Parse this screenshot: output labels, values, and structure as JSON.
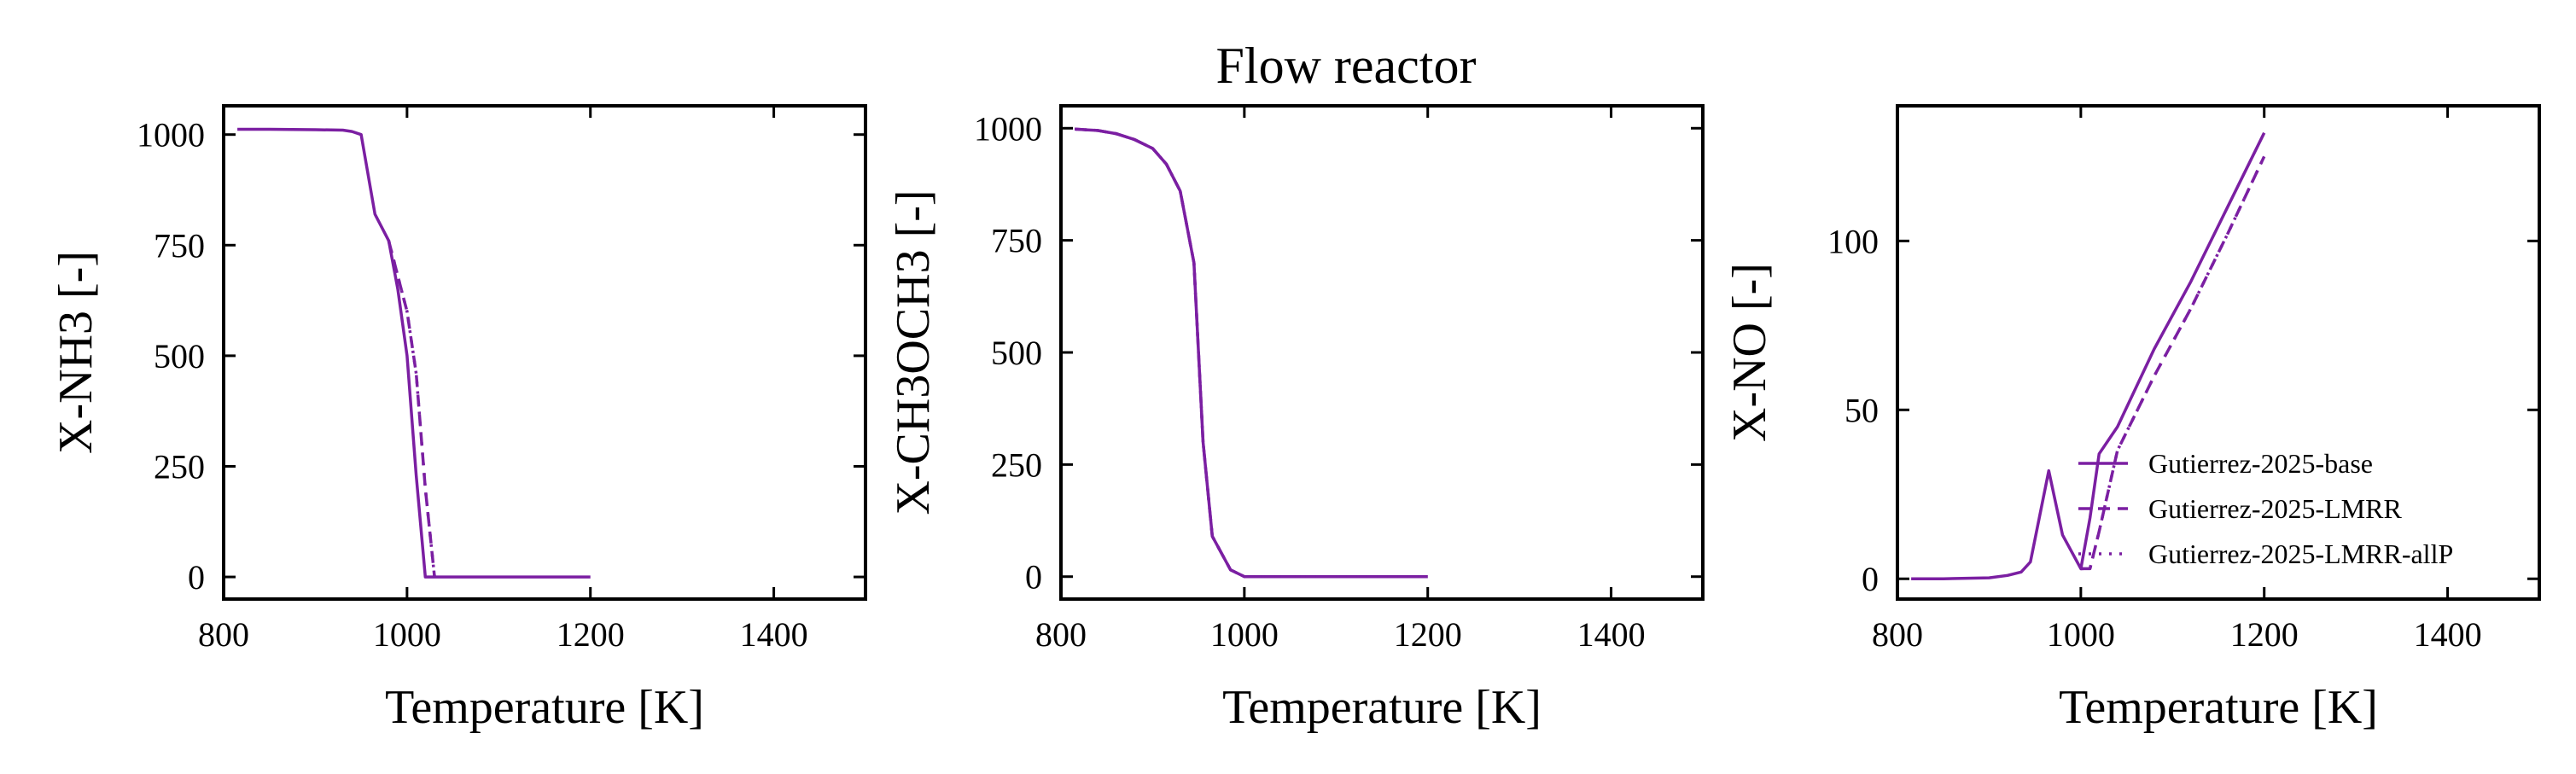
{
  "figure": {
    "title": "Flow reactor",
    "line_color": "#7B1FA2"
  },
  "legend": {
    "placement": "lower-right",
    "entries": [
      {
        "label": "Gutierrez-2025-base",
        "style": "solid"
      },
      {
        "label": "Gutierrez-2025-LMRR",
        "style": "dashed"
      },
      {
        "label": "Gutierrez-2025-LMRR-allP",
        "style": "dotted"
      }
    ]
  },
  "chart_data": [
    {
      "type": "line",
      "xlabel": "Temperature [K]",
      "ylabel": "X-NH3 [-]",
      "xlim": [
        800,
        1500
      ],
      "ylim": [
        -50,
        1065
      ],
      "xticks": [
        800,
        1000,
        1200,
        1400
      ],
      "yticks": [
        0,
        250,
        500,
        750,
        1000
      ],
      "grid": false,
      "series": [
        {
          "name": "Gutierrez-2025-base",
          "style": "solid",
          "x": [
            815,
            850,
            900,
            930,
            940,
            950,
            965,
            980,
            990,
            1000,
            1010,
            1020,
            1040,
            1100,
            1200
          ],
          "y": [
            1012,
            1012,
            1011,
            1010,
            1007,
            1000,
            820,
            760,
            650,
            500,
            230,
            0,
            0,
            0,
            0
          ]
        },
        {
          "name": "Gutierrez-2025-LMRR",
          "style": "dashed",
          "x": [
            980,
            990,
            1000,
            1010,
            1020,
            1030
          ],
          "y": [
            760,
            680,
            600,
            460,
            200,
            0
          ]
        },
        {
          "name": "Gutierrez-2025-LMRR-allP",
          "style": "dotted",
          "x": [
            980,
            990,
            1000,
            1010,
            1020,
            1030
          ],
          "y": [
            760,
            680,
            600,
            460,
            200,
            0
          ]
        }
      ]
    },
    {
      "type": "line",
      "xlabel": "Temperature [K]",
      "ylabel": "X-CH3OCH3 [-]",
      "xlim": [
        800,
        1500
      ],
      "ylim": [
        -50,
        1050
      ],
      "xticks": [
        800,
        1000,
        1200,
        1400
      ],
      "yticks": [
        0,
        250,
        500,
        750,
        1000
      ],
      "grid": false,
      "series": [
        {
          "name": "Gutierrez-2025-base",
          "style": "solid",
          "x": [
            815,
            840,
            860,
            880,
            900,
            915,
            930,
            945,
            955,
            965,
            985,
            1000,
            1020,
            1100,
            1200
          ],
          "y": [
            998,
            995,
            988,
            975,
            955,
            920,
            860,
            700,
            300,
            90,
            15,
            0,
            0,
            0,
            0
          ]
        },
        {
          "name": "Gutierrez-2025-LMRR",
          "style": "dashed",
          "x": [
            815,
            840,
            860,
            880,
            900,
            915,
            930,
            945,
            955,
            965,
            985,
            1000,
            1020,
            1100,
            1200
          ],
          "y": [
            998,
            995,
            988,
            975,
            955,
            920,
            860,
            700,
            300,
            90,
            15,
            0,
            0,
            0,
            0
          ]
        },
        {
          "name": "Gutierrez-2025-LMRR-allP",
          "style": "dotted",
          "x": [
            815,
            840,
            860,
            880,
            900,
            915,
            930,
            945,
            955,
            965,
            985,
            1000,
            1020,
            1100,
            1200
          ],
          "y": [
            998,
            995,
            988,
            975,
            955,
            920,
            860,
            700,
            300,
            90,
            15,
            0,
            0,
            0,
            0
          ]
        }
      ]
    },
    {
      "type": "line",
      "xlabel": "Temperature [K]",
      "ylabel": "X-NO [-]",
      "xlim": [
        800,
        1500
      ],
      "ylim": [
        -6,
        140
      ],
      "xticks": [
        800,
        1000,
        1200,
        1400
      ],
      "yticks": [
        0,
        50,
        100
      ],
      "grid": false,
      "series": [
        {
          "name": "Gutierrez-2025-base",
          "style": "solid",
          "x": [
            815,
            850,
            900,
            920,
            935,
            945,
            965,
            980,
            1000,
            1010,
            1020,
            1040,
            1080,
            1120,
            1160,
            1200
          ],
          "y": [
            0,
            0,
            0.3,
            1,
            2,
            5,
            32,
            13,
            3,
            18,
            37,
            45,
            68,
            88,
            110,
            132
          ]
        },
        {
          "name": "Gutierrez-2025-LMRR",
          "style": "dashed",
          "x": [
            1000,
            1010,
            1020,
            1040,
            1080,
            1120,
            1160,
            1200
          ],
          "y": [
            3,
            3,
            14,
            38,
            60,
            80,
            102,
            125
          ]
        },
        {
          "name": "Gutierrez-2025-LMRR-allP",
          "style": "dotted",
          "x": [
            1000,
            1010,
            1020,
            1040,
            1080,
            1120,
            1160,
            1200
          ],
          "y": [
            3,
            3,
            14,
            38,
            60,
            80,
            102,
            125
          ]
        }
      ]
    }
  ]
}
